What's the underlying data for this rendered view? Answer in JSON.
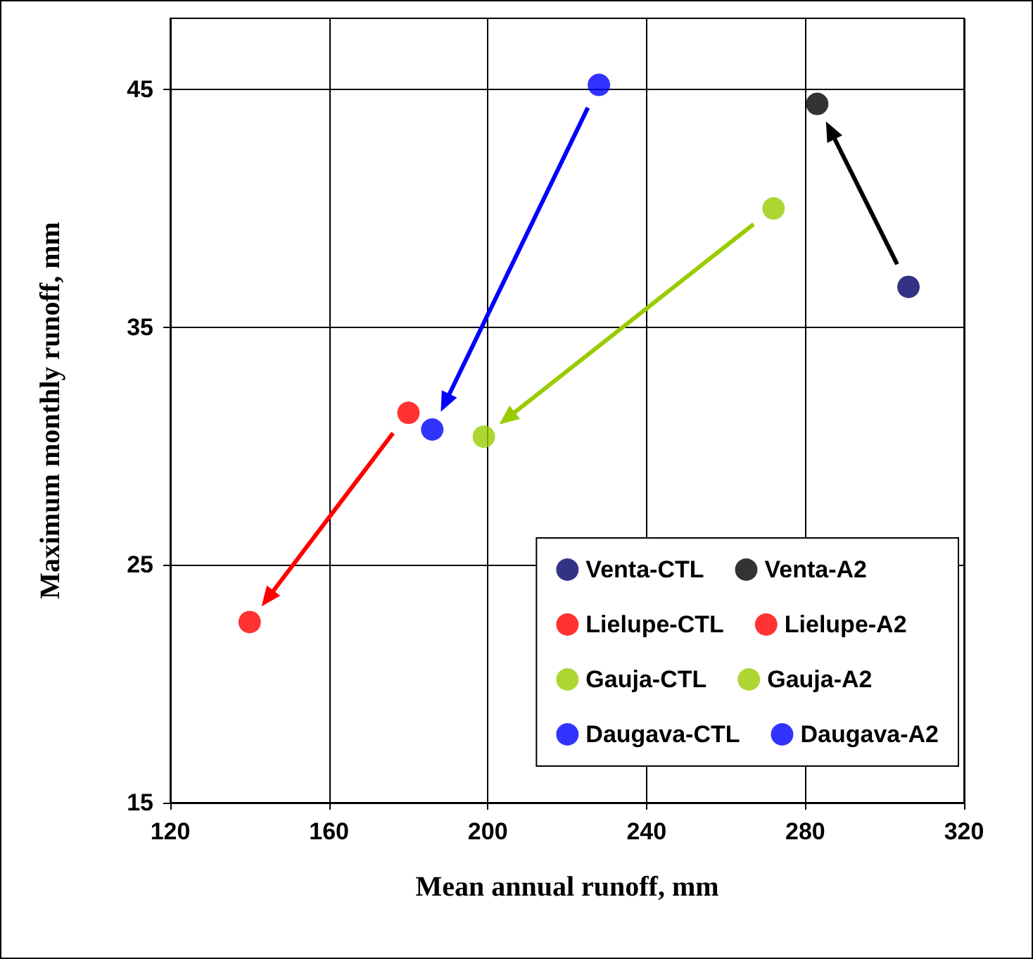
{
  "chart_data": {
    "type": "scatter",
    "xlabel": "Mean annual runoff, mm",
    "ylabel": "Maximum monthly runoff, mm",
    "xlim": [
      120,
      320
    ],
    "xticks": [
      120,
      160,
      200,
      240,
      280,
      320
    ],
    "ylim": [
      15,
      48
    ],
    "yticks": [
      15,
      25,
      35,
      45
    ],
    "grid": true,
    "legend": "bottom right",
    "marker": "circle",
    "series": [
      {
        "name": "Venta-CTL",
        "color": "#000066",
        "x": [
          306
        ],
        "values": [
          36.7
        ]
      },
      {
        "name": "Venta-A2",
        "color": "#000000",
        "x": [
          283
        ],
        "values": [
          44.4
        ]
      },
      {
        "name": "Lielupe-CTL",
        "color": "#ff0000",
        "x": [
          180
        ],
        "values": [
          31.4
        ]
      },
      {
        "name": "Lielupe-A2",
        "color": "#ff0000",
        "x": [
          140
        ],
        "values": [
          22.6
        ]
      },
      {
        "name": "Gauja-CTL",
        "color": "#99cc00",
        "x": [
          272
        ],
        "values": [
          40.0
        ]
      },
      {
        "name": "Gauja-A2",
        "color": "#99cc00",
        "x": [
          199
        ],
        "values": [
          30.4
        ]
      },
      {
        "name": "Daugava-CTL",
        "color": "#0000ff",
        "x": [
          228
        ],
        "values": [
          45.2
        ]
      },
      {
        "name": "Daugava-A2",
        "color": "#0000ff",
        "x": [
          186
        ],
        "values": [
          30.7
        ]
      }
    ]
  }
}
